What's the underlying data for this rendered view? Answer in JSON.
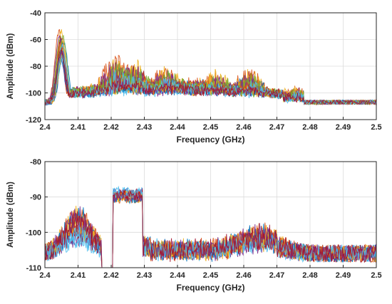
{
  "chart_data": [
    {
      "type": "line",
      "xlabel": "Frequency (GHz)",
      "ylabel": "Amplitude (dBm)",
      "xlim": [
        2.4,
        2.5
      ],
      "ylim": [
        -120,
        -40
      ],
      "x_ticks": [
        "2.4",
        "2.41",
        "2.42",
        "2.43",
        "2.44",
        "2.45",
        "2.46",
        "2.47",
        "2.48",
        "2.49",
        "2.5"
      ],
      "y_ticks": [
        "-40",
        "-60",
        "-80",
        "-100",
        "-120"
      ],
      "grid": true,
      "noise_floor_dbm": -107,
      "peaks": [
        {
          "x": 2.405,
          "y": -53
        },
        {
          "x": 2.422,
          "y": -70
        },
        {
          "x": 2.427,
          "y": -74
        },
        {
          "x": 2.437,
          "y": -79
        },
        {
          "x": 2.452,
          "y": -83
        },
        {
          "x": 2.462,
          "y": -81
        },
        {
          "x": 2.476,
          "y": -95
        }
      ],
      "series_colors": [
        "#0072BD",
        "#D95319",
        "#EDB120",
        "#7E2F8E",
        "#77AC30",
        "#4DBEEE",
        "#A2142F"
      ]
    },
    {
      "type": "line",
      "xlabel": "Frequency (GHz)",
      "ylabel": "Amplitude (dBm)",
      "xlim": [
        2.4,
        2.5
      ],
      "ylim": [
        -110,
        -80
      ],
      "x_ticks": [
        "2.4",
        "2.41",
        "2.42",
        "2.43",
        "2.44",
        "2.45",
        "2.46",
        "2.47",
        "2.48",
        "2.49",
        "2.5"
      ],
      "y_ticks": [
        "-80",
        "-90",
        "-100",
        "-110"
      ],
      "grid": true,
      "noise_floor_dbm": -106,
      "band_start_ghz": 2.4205,
      "band_end_ghz": 2.4295,
      "band_level_dbm": -87.5,
      "side_peaks": [
        {
          "x": 2.41,
          "y": -92
        },
        {
          "x": 2.465,
          "y": -100
        }
      ],
      "series_colors": [
        "#0072BD",
        "#D95319",
        "#EDB120",
        "#7E2F8E",
        "#4DBEEE",
        "#A2142F"
      ]
    }
  ]
}
